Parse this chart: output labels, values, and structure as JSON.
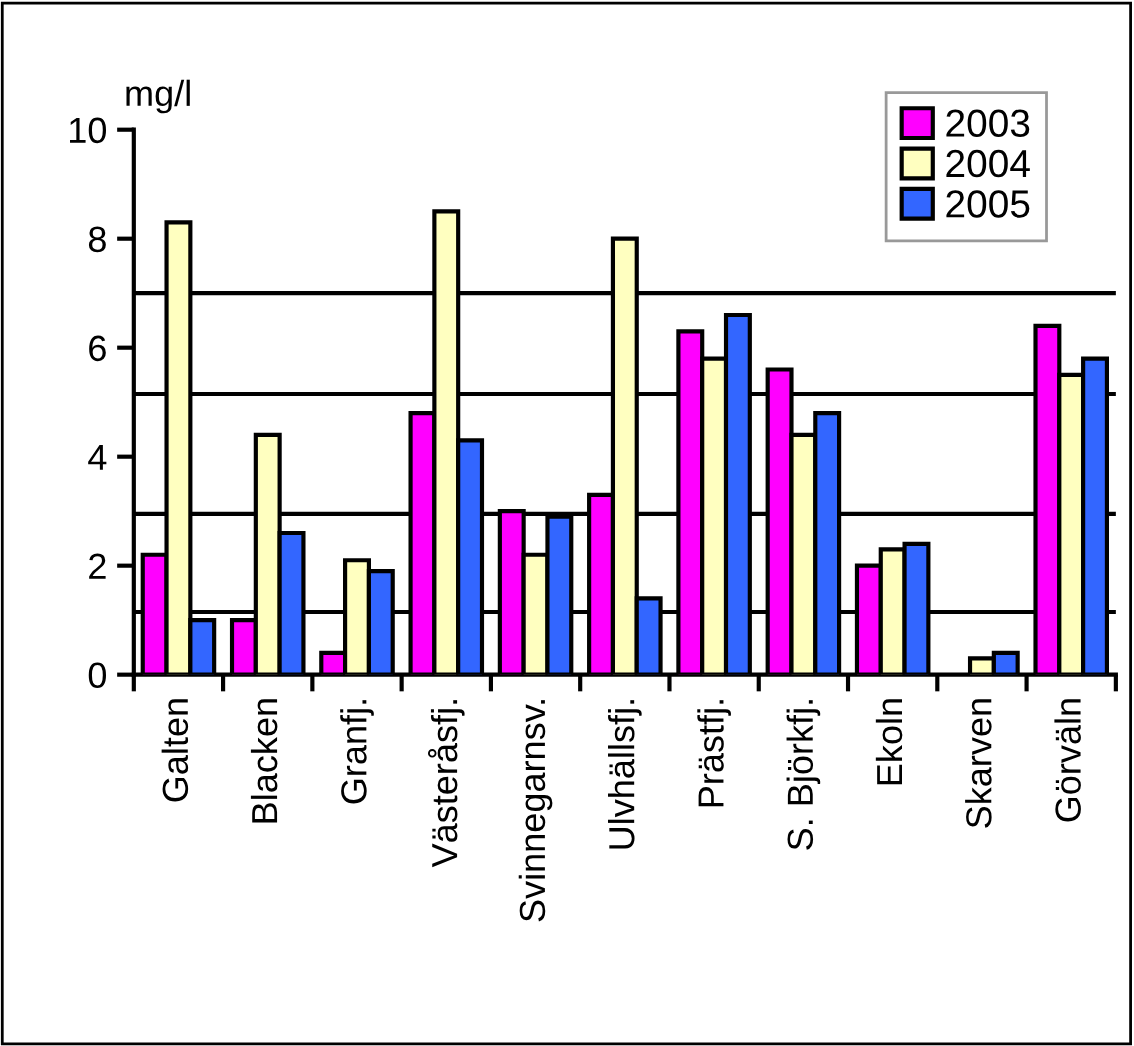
{
  "chart_data": {
    "type": "bar",
    "ylabel": "mg/l",
    "categories": [
      "Galten",
      "Blacken",
      "Granfj.",
      "Västeråsfj.",
      "Svinnegarnsv.",
      "Ulvhällsfj.",
      "Prästfj.",
      "S. Björkfj.",
      "Ekoln",
      "Skarven",
      "Görväln"
    ],
    "series": [
      {
        "name": "2003",
        "color": "#ff00ff",
        "values": [
          2.2,
          1.0,
          0.4,
          4.8,
          3.0,
          3.3,
          6.3,
          5.6,
          2.0,
          null,
          6.4
        ]
      },
      {
        "name": "2004",
        "color": "#ffffc0",
        "values": [
          8.3,
          4.4,
          2.1,
          8.5,
          2.2,
          8.0,
          5.8,
          4.4,
          2.3,
          0.3,
          5.5
        ]
      },
      {
        "name": "2005",
        "color": "#3366ff",
        "values": [
          1.0,
          2.6,
          1.9,
          4.3,
          2.9,
          1.4,
          6.6,
          4.8,
          2.4,
          0.4,
          5.8
        ]
      }
    ],
    "ylim": [
      0,
      10
    ],
    "yticks": [
      0,
      2,
      4,
      6,
      8,
      10
    ],
    "grid": false,
    "legend": "top right",
    "ref_lines": [
      {
        "axis": "y",
        "value": 1.15,
        "color": "#000000"
      },
      {
        "axis": "y",
        "value": 2.95,
        "color": "#000000"
      },
      {
        "axis": "y",
        "value": 5.15,
        "color": "#000000"
      },
      {
        "axis": "y",
        "value": 7.0,
        "color": "#000000"
      }
    ]
  }
}
